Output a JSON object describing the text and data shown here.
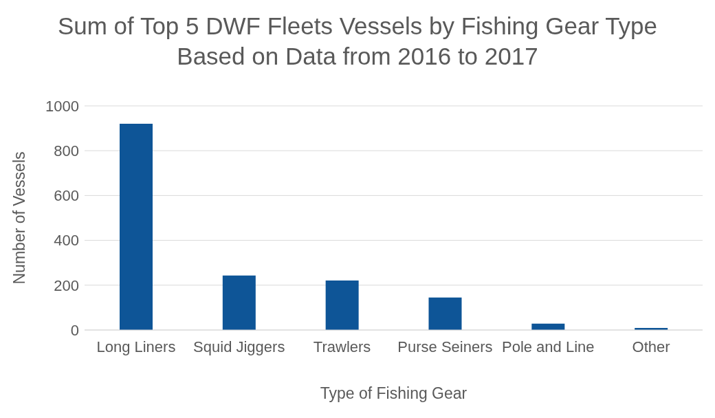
{
  "chart_data": {
    "type": "bar",
    "title": "Sum of Top 5 DWF Fleets Vessels by Fishing Gear Type Based on Data from 2016 to 2017",
    "xlabel": "Type of Fishing Gear",
    "ylabel": "Number of Vessels",
    "categories": [
      "Long Liners",
      "Squid Jiggers",
      "Trawlers",
      "Purse Seiners",
      "Pole and Line",
      "Other"
    ],
    "values": [
      920,
      243,
      221,
      145,
      28,
      9
    ],
    "color": "#0e5597",
    "ylim": [
      0,
      1000
    ],
    "yticks": [
      0,
      200,
      400,
      600,
      800,
      1000
    ],
    "grid": "y"
  }
}
